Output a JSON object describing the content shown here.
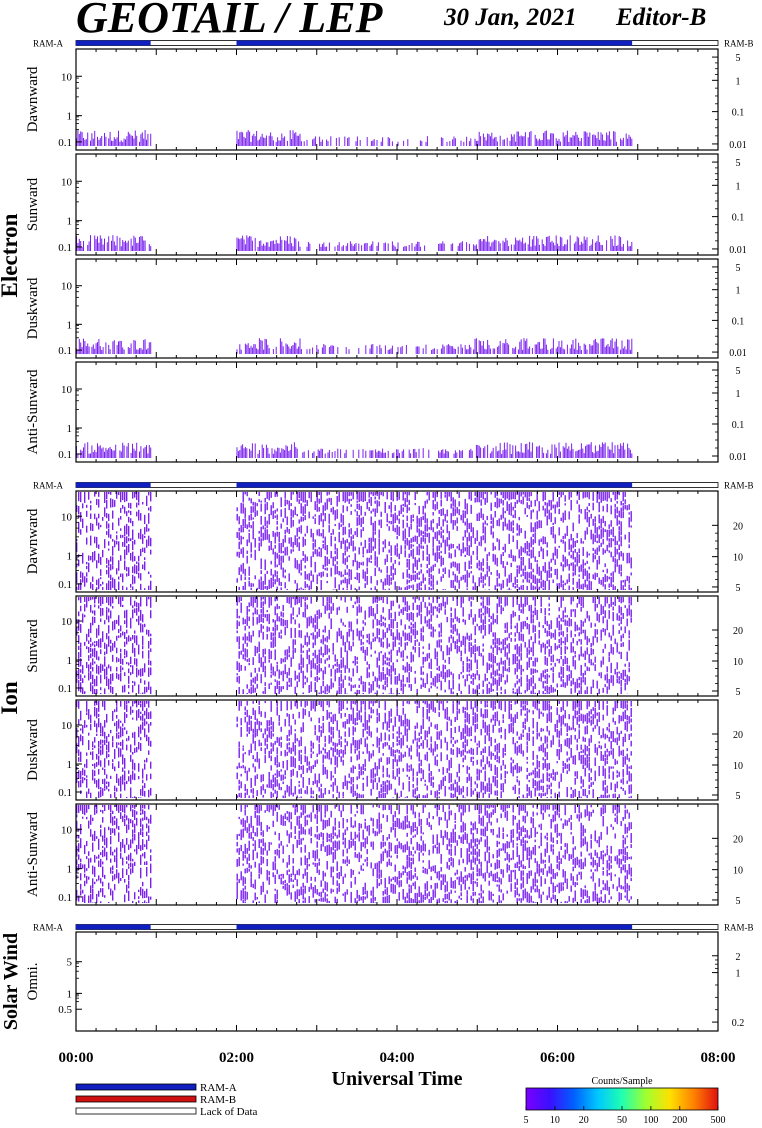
{
  "header": {
    "title": "GEOTAIL / LEP",
    "date": "30 Jan, 2021",
    "editor": "Editor-B"
  },
  "chart_data": {
    "type": "heatmap",
    "xlabel": "Universal Time",
    "x_ticks": [
      "00:00",
      "02:00",
      "04:00",
      "06:00",
      "08:00"
    ],
    "x_range_hours": [
      0,
      8
    ],
    "data_coverage_hours": [
      [
        0.0,
        0.93
      ],
      [
        2.0,
        6.93
      ]
    ],
    "ram_labels": {
      "left": "RAM-A",
      "right": "RAM-B"
    },
    "groups": [
      {
        "name": "Electron",
        "panels": [
          {
            "name": "Dawnward",
            "left_ticks": [
              "0.1",
              "1",
              "10"
            ],
            "right_ticks": [
              "0.01",
              "0.1",
              "1",
              "5"
            ],
            "pattern": "sparse"
          },
          {
            "name": "Sunward",
            "left_ticks": [
              "0.1",
              "1",
              "10"
            ],
            "right_ticks": [
              "0.01",
              "0.1",
              "1",
              "5"
            ],
            "pattern": "sparse"
          },
          {
            "name": "Duskward",
            "left_ticks": [
              "0.1",
              "1",
              "10"
            ],
            "right_ticks": [
              "0.01",
              "0.1",
              "1",
              "5"
            ],
            "pattern": "sparse"
          },
          {
            "name": "Anti-Sunward",
            "left_ticks": [
              "0.1",
              "1",
              "10"
            ],
            "right_ticks": [
              "0.01",
              "0.1",
              "1",
              "5"
            ],
            "pattern": "sparse"
          }
        ]
      },
      {
        "name": "Ion",
        "panels": [
          {
            "name": "Dawnward",
            "left_ticks": [
              "0.1",
              "1",
              "10"
            ],
            "right_ticks": [
              "5",
              "10",
              "20"
            ],
            "pattern": "dense"
          },
          {
            "name": "Sunward",
            "left_ticks": [
              "0.1",
              "1",
              "10"
            ],
            "right_ticks": [
              "5",
              "10",
              "20"
            ],
            "pattern": "dense"
          },
          {
            "name": "Duskward",
            "left_ticks": [
              "0.1",
              "1",
              "10"
            ],
            "right_ticks": [
              "5",
              "10",
              "20"
            ],
            "pattern": "dense"
          },
          {
            "name": "Anti-Sunward",
            "left_ticks": [
              "0.1",
              "1",
              "10"
            ],
            "right_ticks": [
              "5",
              "10",
              "20"
            ],
            "pattern": "dense"
          }
        ]
      },
      {
        "name": "Solar Wind",
        "panels": [
          {
            "name": "Omni.",
            "left_ticks": [
              "0.5",
              "1",
              "5"
            ],
            "right_ticks": [
              "0.2",
              "1",
              "2"
            ],
            "pattern": "empty"
          }
        ]
      }
    ],
    "legend": [
      {
        "label": "RAM-A",
        "color": "#1020c0"
      },
      {
        "label": "RAM-B",
        "color": "#d01010"
      },
      {
        "label": "Lack of Data",
        "color": "#ffffff"
      }
    ],
    "colorbar": {
      "title": "Counts/Sample",
      "ticks": [
        "5",
        "10",
        "20",
        "50",
        "100",
        "200",
        "500"
      ],
      "colors": [
        "#7a00ff",
        "#3a10ff",
        "#0060ff",
        "#00c8ff",
        "#20ffb0",
        "#a0ff30",
        "#ffe000",
        "#ff8000",
        "#e01010"
      ]
    },
    "data_color": "#7a20f0"
  }
}
